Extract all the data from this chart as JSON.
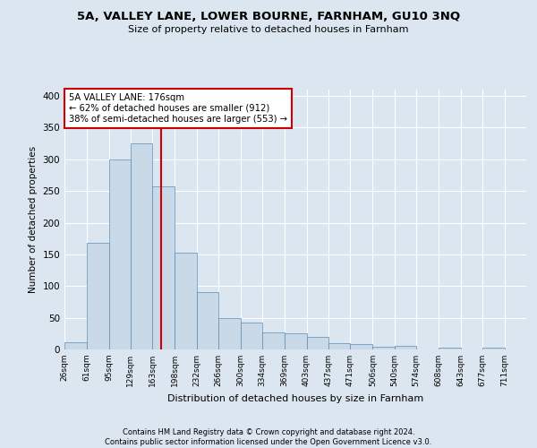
{
  "title": "5A, VALLEY LANE, LOWER BOURNE, FARNHAM, GU10 3NQ",
  "subtitle": "Size of property relative to detached houses in Farnham",
  "xlabel": "Distribution of detached houses by size in Farnham",
  "ylabel": "Number of detached properties",
  "footnote": "Contains HM Land Registry data © Crown copyright and database right 2024.\nContains public sector information licensed under the Open Government Licence v3.0.",
  "bar_labels": [
    "26sqm",
    "61sqm",
    "95sqm",
    "129sqm",
    "163sqm",
    "198sqm",
    "232sqm",
    "266sqm",
    "300sqm",
    "334sqm",
    "369sqm",
    "403sqm",
    "437sqm",
    "471sqm",
    "506sqm",
    "540sqm",
    "574sqm",
    "608sqm",
    "643sqm",
    "677sqm",
    "711sqm"
  ],
  "bar_heights": [
    11,
    168,
    300,
    325,
    258,
    152,
    91,
    50,
    43,
    27,
    26,
    20,
    10,
    9,
    4,
    5,
    0,
    3,
    0,
    3,
    0
  ],
  "bar_color": "#c9d9e8",
  "bar_edgecolor": "#5a8db5",
  "vline_x": 176,
  "highlight_label": "5A VALLEY LANE: 176sqm",
  "annotation_line1": "← 62% of detached houses are smaller (912)",
  "annotation_line2": "38% of semi-detached houses are larger (553) →",
  "vline_color": "#cc0000",
  "annotation_box_edgecolor": "#cc0000",
  "annotation_box_facecolor": "#ffffff",
  "ylim": [
    0,
    410
  ],
  "background_color": "#dce6f0",
  "grid_color": "#ffffff",
  "yticks": [
    0,
    50,
    100,
    150,
    200,
    250,
    300,
    350,
    400
  ]
}
